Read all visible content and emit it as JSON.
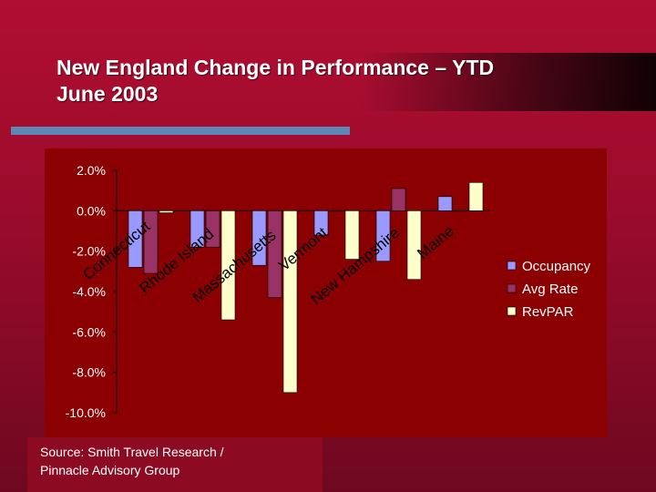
{
  "slide": {
    "title": "New England Change in Performance – YTD\nJune 2003",
    "source": "Source: Smith Travel Research /\nPinnacle Advisory Group"
  },
  "colors": {
    "background": "#a30c2e",
    "chart_background": "#8b0000",
    "rule": "#5f86b5",
    "occupancy": "#9999ff",
    "avg_rate": "#993366",
    "revpar": "#ffffcc"
  },
  "chart_data": {
    "type": "bar",
    "categories": [
      "Connecticut",
      "Rhode Island",
      "Massachusetts",
      "Vermont",
      "New Hampshire",
      "Maine"
    ],
    "series": [
      {
        "name": "Occupancy",
        "values": [
          -2.8,
          -1.8,
          -2.7,
          -1.2,
          -2.5,
          0.7
        ]
      },
      {
        "name": "Avg Rate",
        "values": [
          -3.1,
          -1.8,
          -4.3,
          0.0,
          1.1,
          0.0
        ]
      },
      {
        "name": "RevPAR",
        "values": [
          -0.1,
          -5.4,
          -9.0,
          -2.4,
          -3.4,
          1.4
        ]
      }
    ],
    "y_ticks": [
      "2.0%",
      "0.0%",
      "-2.0%",
      "-4.0%",
      "-6.0%",
      "-8.0%",
      "-10.0%"
    ],
    "ylim": [
      -10,
      2
    ],
    "legend_position": "right",
    "grid": false
  }
}
